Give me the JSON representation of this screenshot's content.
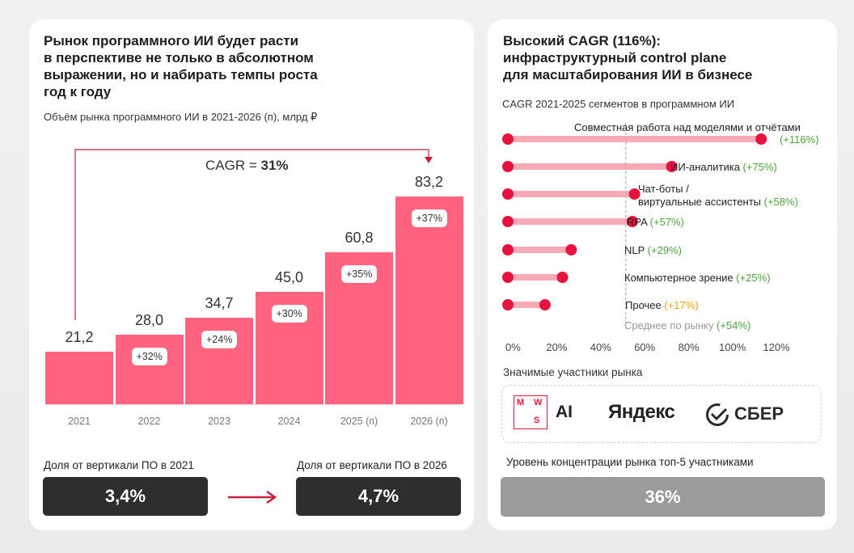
{
  "left": {
    "title_lines": [
      "Рынок программного ИИ будет расти",
      "в перспективе не только в абсолютном",
      "выражении, но и набирать темпы роста",
      "год к году"
    ],
    "subtitle": "Объём рынка программного ИИ в 2021-2026 (п), млрд ₽",
    "cagr_label": "CAGR = ",
    "cagr_value": "31%",
    "share_2021_label": "Доля от вертикали ПО в 2021",
    "share_2021_value": "3,4%",
    "share_2026_label": "Доля от вертикали ПО в 2026",
    "share_2026_value": "4,7%"
  },
  "right": {
    "title_lines": [
      "Высокий CAGR (116%):",
      "инфраструктурный control plane",
      "для масштабирования ИИ в бизнесе"
    ],
    "subtitle": "CAGR 2021-2025 сегментов в программном ИИ",
    "average_label": "Среднее по рынку",
    "average_value": "(+54%)",
    "participants_label": "Значимые участники рынка",
    "logos": {
      "mws_letters": [
        "M",
        "W",
        "S"
      ],
      "mws_ai": "AI",
      "yandex": "Яндекс",
      "sber": "СБЕР"
    },
    "concentration_label": "Уровень концентрации рынка топ-5 участниками",
    "concentration_value": "36%"
  },
  "colors": {
    "bar": "#ff6380",
    "segment_line": "#f7a9b6",
    "segment_dot": "#e8123f",
    "green": "#4aa339",
    "orange": "#e8a313"
  },
  "chart_data": [
    {
      "type": "bar",
      "title": "Объём рынка программного ИИ в 2021-2026 (п), млрд ₽",
      "categories": [
        "2021",
        "2022",
        "2023",
        "2024",
        "2025 (п)",
        "2026 (п)"
      ],
      "values": [
        21.2,
        28.0,
        34.7,
        45.0,
        60.8,
        83.2
      ],
      "value_labels": [
        "21,2",
        "28,0",
        "34,7",
        "45,0",
        "60,8",
        "83,2"
      ],
      "growth_labels": [
        "",
        "+32%",
        "+24%",
        "+30%",
        "+35%",
        "+37%"
      ],
      "ylim": [
        0,
        90
      ],
      "annotation": "CAGR = 31%"
    },
    {
      "type": "dot-range",
      "title": "CAGR 2021-2025 сегментов в программном ИИ",
      "categories": [
        "Совместная работа над моделями и отчётами",
        "ИИ-аналитика",
        "Чат-боты / виртуальные ассистенты",
        "RPA",
        "NLP",
        "Компьютерное зрение",
        "Прочее"
      ],
      "label_lines": [
        [
          "Совместная работа над моделями и отчётами"
        ],
        [
          "ИИ-аналитика"
        ],
        [
          "Чат-боты /",
          "виртуальные ассистенты"
        ],
        [
          "RPA"
        ],
        [
          "NLP"
        ],
        [
          "Компьютерное зрение"
        ],
        [
          "Прочее"
        ]
      ],
      "values": [
        116,
        75,
        58,
        57,
        29,
        25,
        17
      ],
      "value_labels": [
        "(+116%)",
        "(+75%)",
        "(+58%)",
        "(+57%)",
        "(+29%)",
        "(+25%)",
        "(+17%)"
      ],
      "label_colors": [
        "green",
        "green",
        "green",
        "green",
        "green",
        "green",
        "orange"
      ],
      "average": 54,
      "xlim": [
        0,
        120
      ],
      "x_ticks": [
        "0%",
        "20%",
        "40%",
        "60%",
        "80%",
        "100%",
        "120%"
      ]
    }
  ]
}
